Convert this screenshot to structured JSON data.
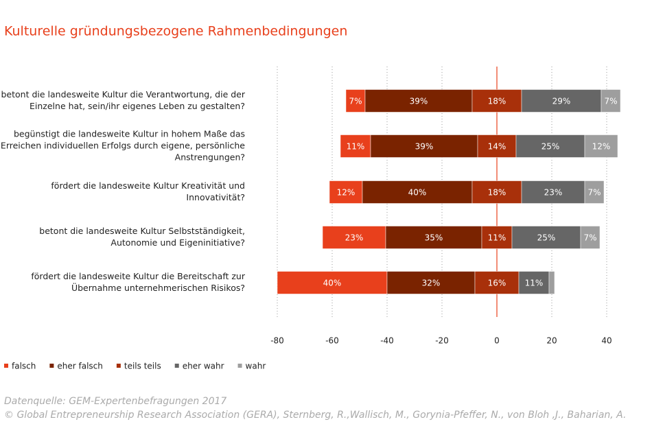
{
  "chart_data": {
    "type": "diverging_bar",
    "title": "Kulturelle gründungsbezogene Rahmenbedingungen",
    "categories": [
      [
        "betont die landesweite Kultur die Verantwortung, die der",
        "Einzelne hat, sein/ihr eigenes Leben zu gestalten?"
      ],
      [
        "begünstigt die landesweite Kultur in hohem Maße das",
        "Erreichen individuellen Erfolgs durch eigene, persönliche",
        "Anstrengungen?"
      ],
      [
        "fördert die landesweite Kultur Kreativität und",
        "Innovativität?"
      ],
      [
        "betont die landesweite Kultur Selbstständigkeit,",
        "Autonomie und Eigeninitiative?"
      ],
      [
        "fördert die landesweite Kultur die Bereitschaft zur",
        "Übernahme unternehmerischen Risikos?"
      ]
    ],
    "series": [
      {
        "name": "falsch",
        "color": "#e8401c",
        "values": [
          7,
          11,
          12,
          23,
          40
        ],
        "value_labels": [
          "7%",
          "11%",
          "12%",
          "23%",
          "40%"
        ]
      },
      {
        "name": "eher falsch",
        "color": "#7a2300",
        "values": [
          39,
          39,
          40,
          35,
          32
        ],
        "value_labels": [
          "39%",
          "39%",
          "40%",
          "35%",
          "32%"
        ]
      },
      {
        "name": "teils teils",
        "color": "#a8300a",
        "values": [
          18,
          14,
          18,
          11,
          16
        ],
        "value_labels": [
          "18%",
          "14%",
          "18%",
          "11%",
          "16%"
        ]
      },
      {
        "name": "eher wahr",
        "color": "#666666",
        "values": [
          29,
          25,
          23,
          25,
          11
        ],
        "value_labels": [
          "29%",
          "25%",
          "23%",
          "25%",
          "11%"
        ]
      },
      {
        "name": "wahr",
        "color": "#9e9e9e",
        "values": [
          7,
          12,
          7,
          7,
          2
        ],
        "value_labels": [
          "7%",
          "12%",
          "7%",
          "7%",
          null
        ]
      }
    ],
    "center_series": 2,
    "xlim": [
      -81,
      45
    ],
    "xticks": [
      -80,
      -60,
      -40,
      -20,
      0,
      20,
      40
    ],
    "grid": true,
    "zero_line_color": "#e8401c",
    "source": [
      "Datenquelle: GEM-Expertenbefragungen 2017",
      "© Global Entrepreneurship Research Association (GERA), Sternberg, R.,Wallisch, M., Gorynia-Pfeffer, N., von Bloh ,J., Baharian, A."
    ]
  }
}
